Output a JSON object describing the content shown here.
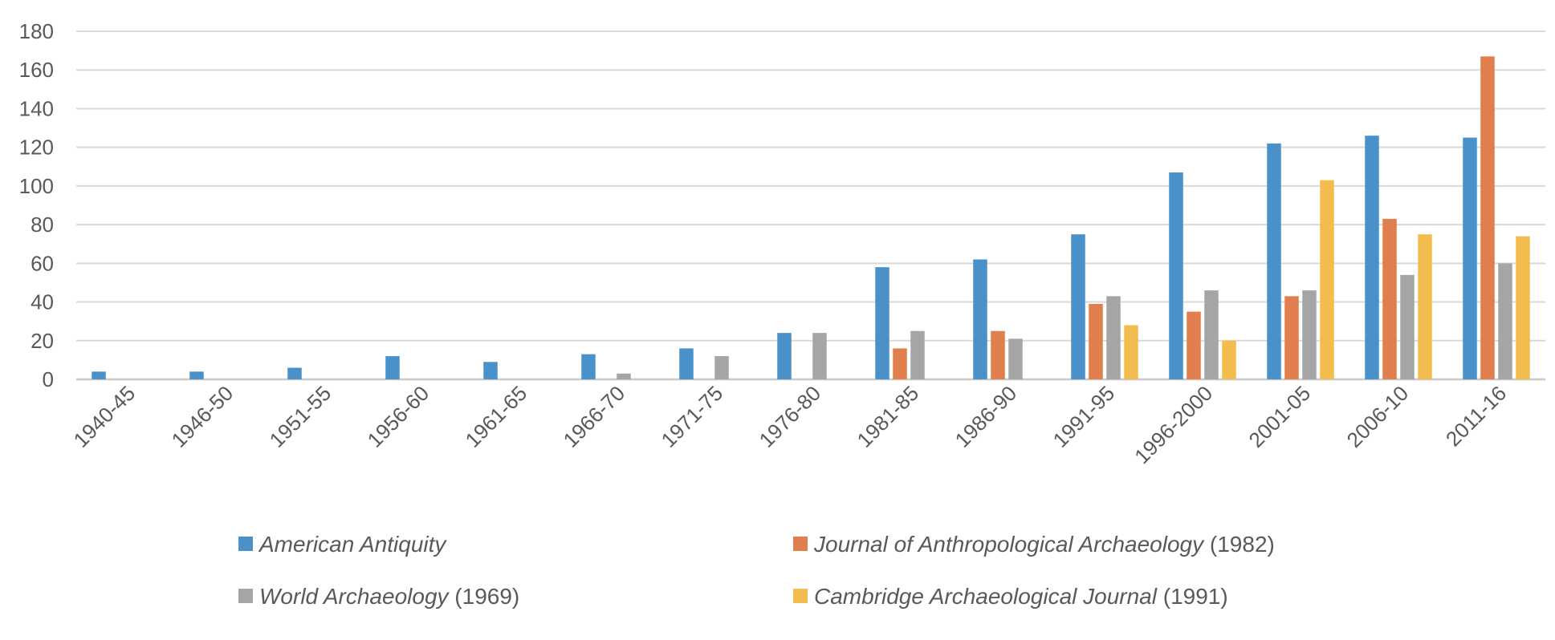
{
  "chart_data": {
    "type": "bar",
    "title": "",
    "xlabel": "",
    "ylabel": "",
    "ylim": [
      0,
      180
    ],
    "yticks": [
      0,
      20,
      40,
      60,
      80,
      100,
      120,
      140,
      160,
      180
    ],
    "grid": true,
    "legend_position": "bottom",
    "categories": [
      "1940-45",
      "1946-50",
      "1951-55",
      "1956-60",
      "1961-65",
      "1966-70",
      "1971-75",
      "1976-80",
      "1981-85",
      "1986-90",
      "1991-95",
      "1996-2000",
      "2001-05",
      "2006-10",
      "2011-16"
    ],
    "series": [
      {
        "name": "American Antiquity",
        "suffix": "",
        "color": "#4A90C9",
        "values": [
          4,
          4,
          6,
          12,
          9,
          13,
          16,
          24,
          58,
          62,
          75,
          107,
          122,
          126,
          125
        ]
      },
      {
        "name": "Journal of Anthropological Archaeology",
        "suffix": " (1982)",
        "color": "#E07F4D",
        "values": [
          null,
          null,
          null,
          null,
          null,
          null,
          null,
          null,
          16,
          25,
          39,
          35,
          43,
          83,
          167
        ]
      },
      {
        "name": "World Archaeology",
        "suffix": " (1969)",
        "color": "#A5A5A5",
        "values": [
          null,
          null,
          null,
          null,
          null,
          3,
          12,
          24,
          25,
          21,
          43,
          46,
          46,
          54,
          60
        ]
      },
      {
        "name": "Cambridge Archaeological Journal",
        "suffix": " (1991)",
        "color": "#F2BD4E",
        "values": [
          null,
          null,
          null,
          null,
          null,
          null,
          null,
          null,
          null,
          null,
          28,
          20,
          103,
          75,
          74
        ]
      }
    ]
  }
}
